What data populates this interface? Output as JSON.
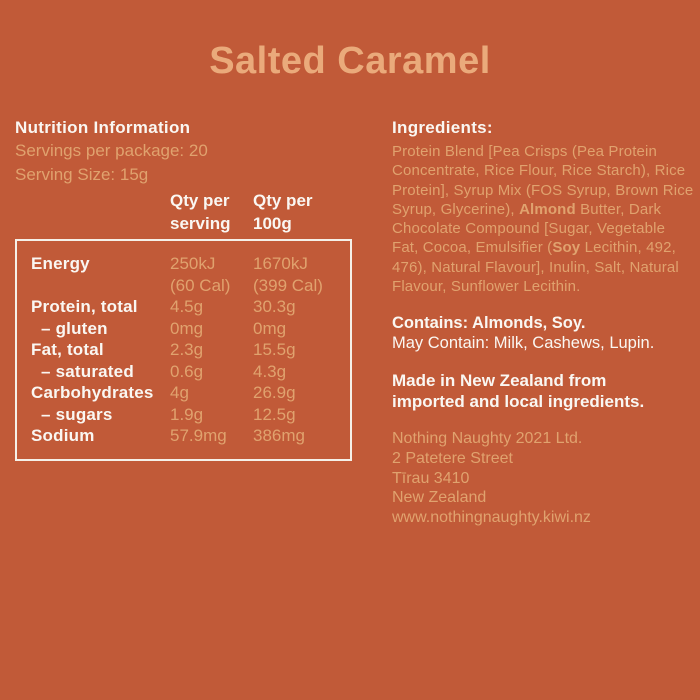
{
  "title": "Salted Caramel",
  "colors": {
    "background": "#C15A38",
    "accent_text": "#E0A26E",
    "title_text": "#EAAA7B",
    "white_text": "#FAF7F2",
    "table_border": "#F5F0E8"
  },
  "nutrition": {
    "heading": "Nutrition Information",
    "servings_per_package": "Servings per package: 20",
    "serving_size": "Serving Size: 15g",
    "col1_header": "Qty per\nserving",
    "col2_header": "Qty per\n100g",
    "rows": [
      {
        "label": "Energy",
        "serving": "250kJ\n(60 Cal)",
        "per100": "1670kJ\n(399 Cal)"
      },
      {
        "label": "Protein, total",
        "serving": "4.5g",
        "per100": "30.3g"
      },
      {
        "label": "– gluten",
        "serving": "0mg",
        "per100": "0mg"
      },
      {
        "label": "Fat, total",
        "serving": "2.3g",
        "per100": "15.5g"
      },
      {
        "label": "– saturated",
        "serving": "0.6g",
        "per100": "4.3g"
      },
      {
        "label": "Carbohydrates",
        "serving": "4g",
        "per100": "26.9g"
      },
      {
        "label": "– sugars",
        "serving": "1.9g",
        "per100": "12.5g"
      },
      {
        "label": "Sodium",
        "serving": "57.9mg",
        "per100": "386mg"
      }
    ]
  },
  "ingredients": {
    "heading": "Ingredients:",
    "seg1": "Protein Blend [Pea Crisps (Pea Protein\nConcentrate, Rice Flour, Rice Starch), Rice\nProtein], Syrup Mix (FOS Syrup, Brown Rice\nSyrup, Glycerine), ",
    "seg2_bold": "Almond",
    "seg3": " Butter, Dark\nChocolate Compound [Sugar, Vegetable\nFat, Cocoa, Emulsifier (",
    "seg4_bold": "Soy",
    "seg5": " Lecithin, 492,\n476), Natural Flavour], Inulin, Salt, Natural\nFlavour, Sunflower Lecithin.",
    "contains": "Contains: Almonds, Soy.",
    "may_contain": "May Contain: Milk, Cashews, Lupin.",
    "origin": "Made in New Zealand from\nimported and local ingredients."
  },
  "footer": {
    "company": "Nothing Naughty 2021 Ltd.",
    "street": "2 Patetere Street",
    "city": "Tīrau 3410",
    "country": "New Zealand",
    "website": "www.nothingnaughty.kiwi.nz"
  }
}
